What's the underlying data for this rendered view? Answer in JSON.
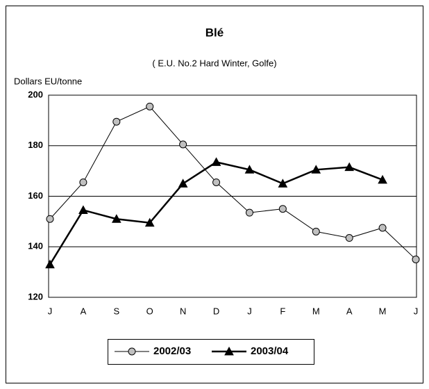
{
  "chart_data": {
    "type": "line",
    "title": "Blé",
    "subtitle": "( E.U. No.2 Hard Winter, Golfe)",
    "y_axis_label": "Dollars EU/tonne",
    "categories": [
      "J",
      "A",
      "S",
      "O",
      "N",
      "D",
      "J",
      "F",
      "M",
      "A",
      "M",
      "J"
    ],
    "series": [
      {
        "name": "2002/03",
        "color": "#c0c0c0",
        "marker": "circle",
        "values": [
          151,
          165.5,
          189.5,
          195.5,
          180.5,
          165.5,
          153.5,
          155,
          146,
          143.5,
          147.5,
          135
        ]
      },
      {
        "name": "2003/04",
        "color": "#000000",
        "marker": "triangle",
        "values": [
          133,
          154.5,
          151,
          149.5,
          165,
          173.5,
          170.5,
          165,
          170.5,
          171.5,
          166.5,
          null
        ]
      }
    ],
    "ylim": [
      120,
      200
    ],
    "yticks": [
      120,
      140,
      160,
      180,
      200
    ],
    "grid": true,
    "legend": "bottom"
  }
}
